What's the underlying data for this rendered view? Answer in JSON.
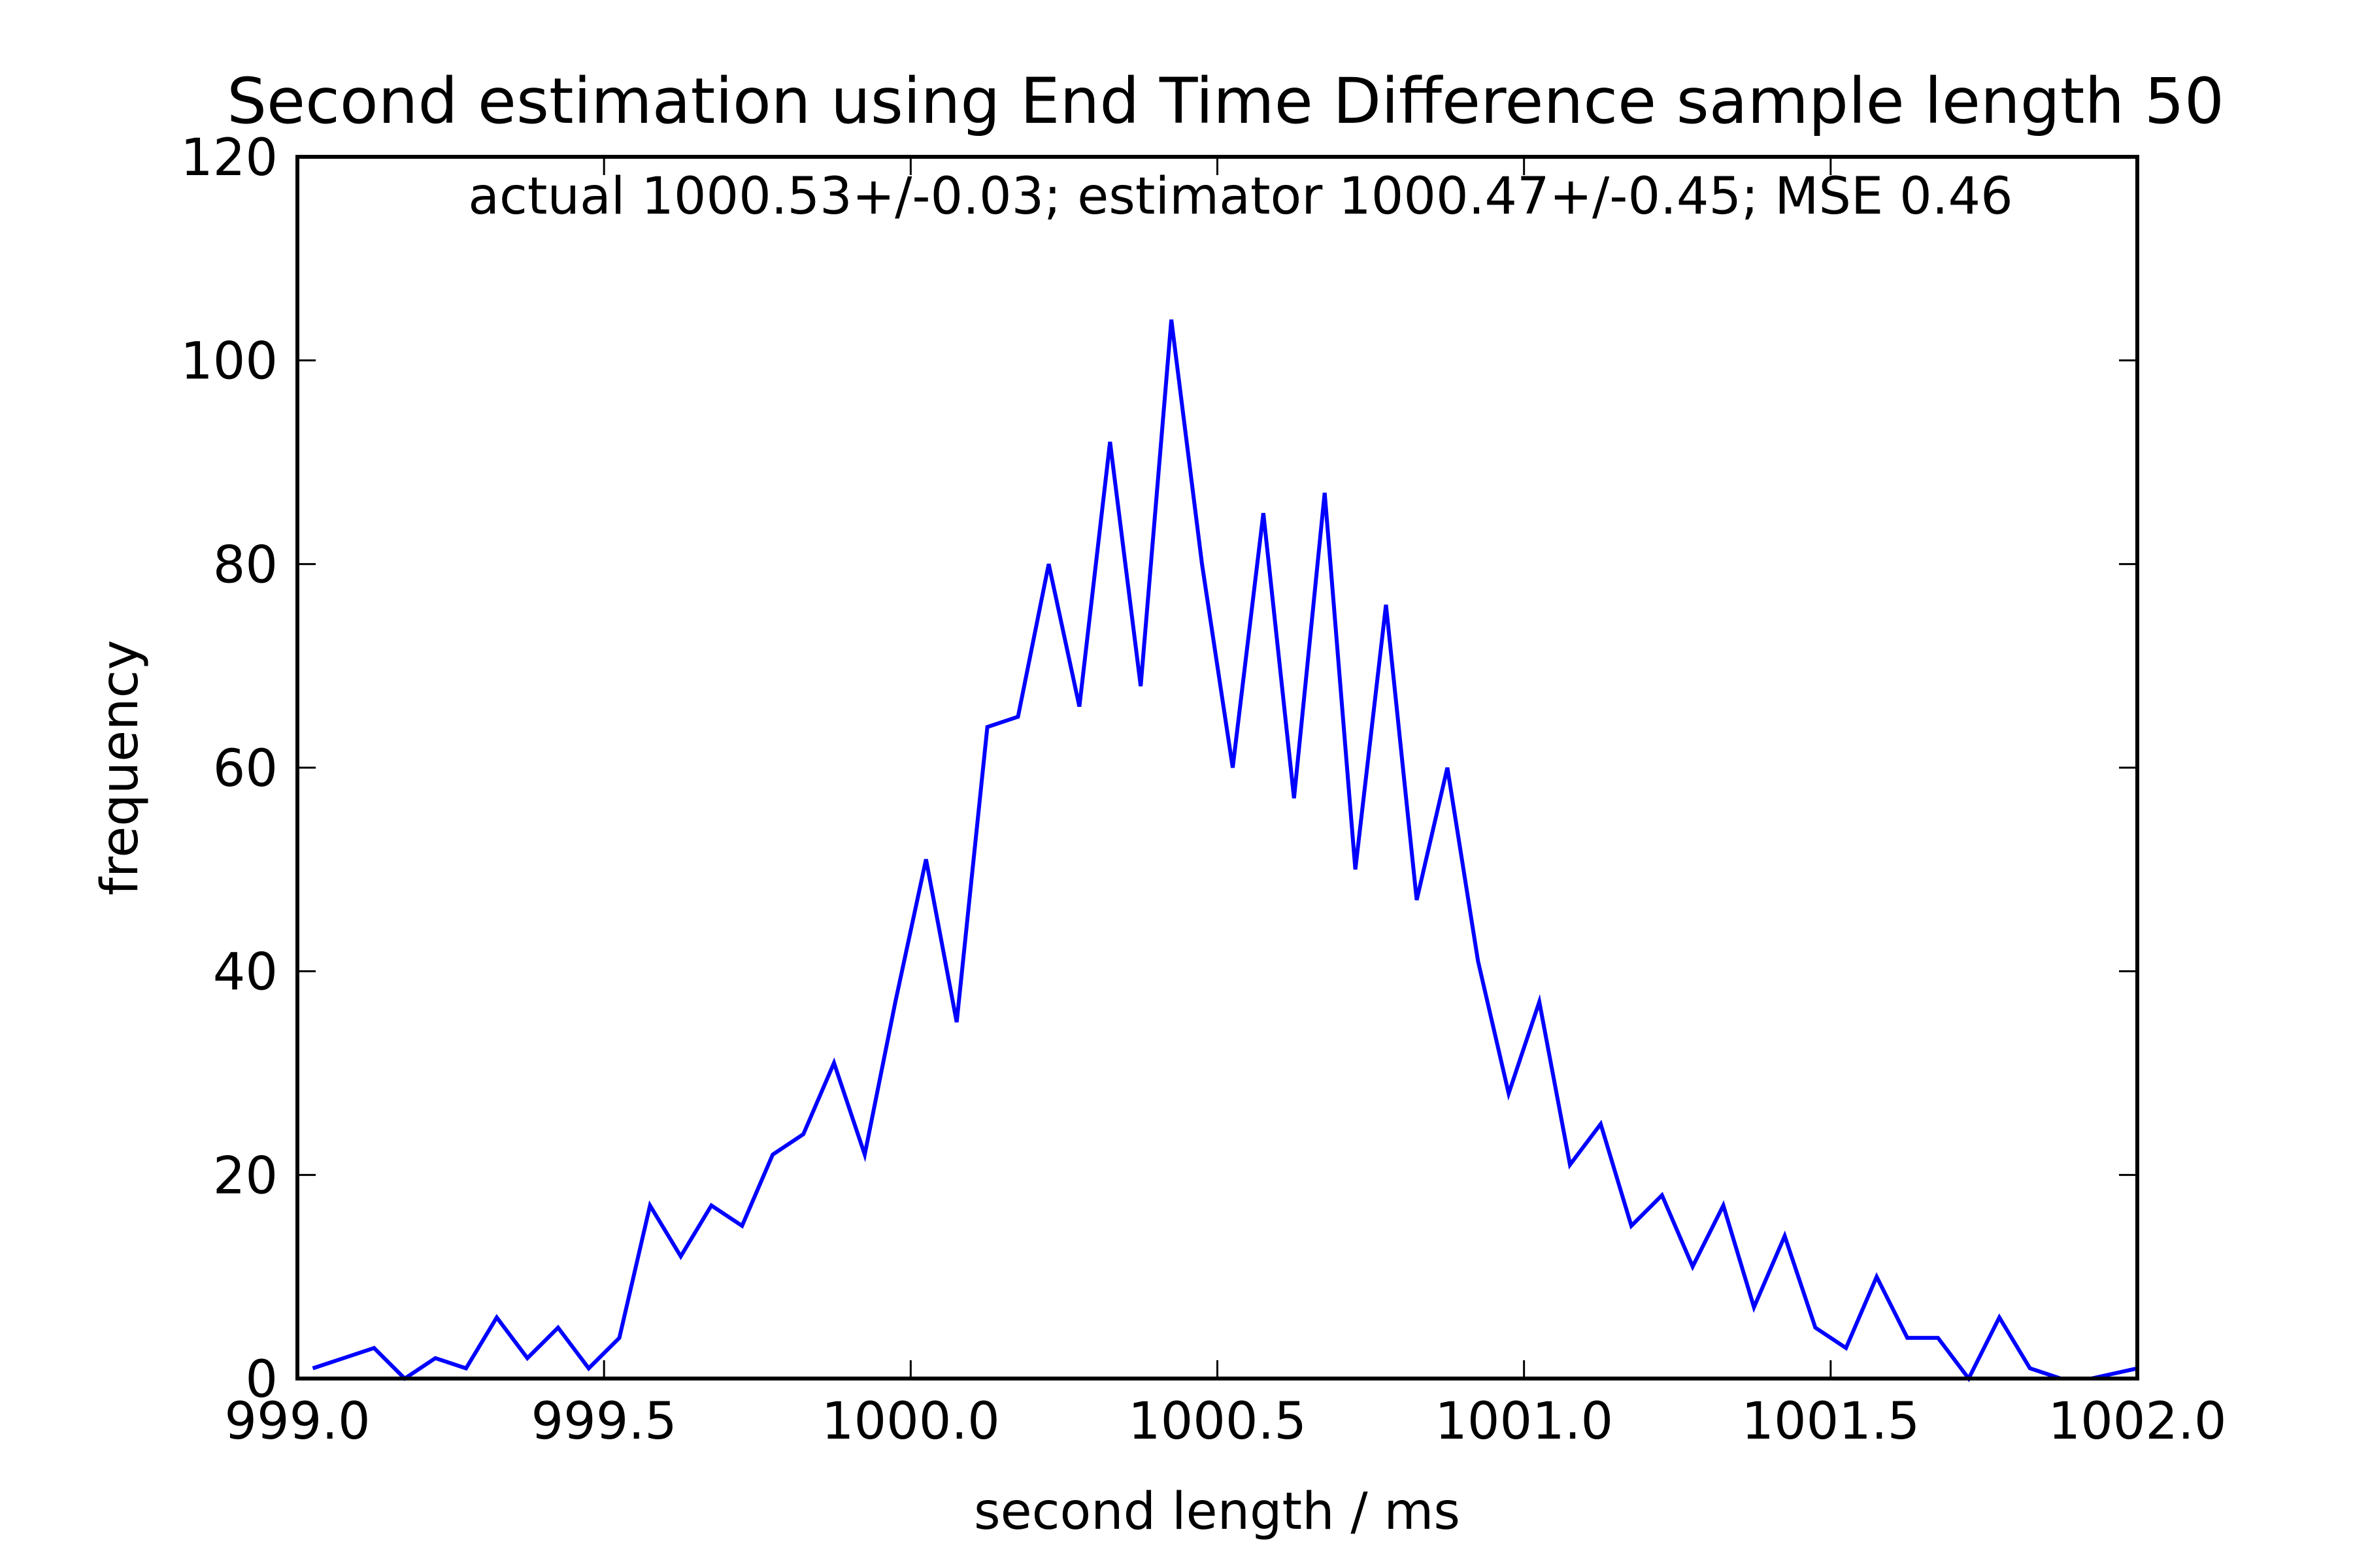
{
  "chart_data": {
    "type": "line",
    "title": "Second estimation using End Time Difference sample length 50",
    "annotation": "actual 1000.53+/-0.03;  estimator 1000.47+/-0.45;  MSE 0.46",
    "xlabel": "second length / ms",
    "ylabel": "frequency",
    "xlim": [
      999.0,
      1002.0
    ],
    "ylim": [
      0,
      120
    ],
    "xticks": [
      999.0,
      999.5,
      1000.0,
      1000.5,
      1001.0,
      1001.5,
      1002.0
    ],
    "xtick_labels": [
      "999.0",
      "999.5",
      "1000.0",
      "1000.5",
      "1001.0",
      "1001.5",
      "1002.0"
    ],
    "yticks": [
      0,
      20,
      40,
      60,
      80,
      100,
      120
    ],
    "ytick_labels": [
      "0",
      "20",
      "40",
      "60",
      "80",
      "100",
      "120"
    ],
    "grid": false,
    "line_color": "#0000ff",
    "series": [
      {
        "x": [
          999.025,
          999.125,
          999.175,
          999.225,
          999.275,
          999.325,
          999.375,
          999.425,
          999.475,
          999.525,
          999.575,
          999.625,
          999.675,
          999.725,
          999.775,
          999.825,
          999.875,
          999.925,
          999.975,
          1000.025,
          1000.075,
          1000.125,
          1000.175,
          1000.225,
          1000.275,
          1000.325,
          1000.375,
          1000.425,
          1000.475,
          1000.525,
          1000.575,
          1000.625,
          1000.675,
          1000.725,
          1000.775,
          1000.825,
          1000.875,
          1000.925,
          1000.975,
          1001.025,
          1001.075,
          1001.125,
          1001.175,
          1001.225,
          1001.275,
          1001.325,
          1001.375,
          1001.425,
          1001.475,
          1001.525,
          1001.575,
          1001.625,
          1001.675,
          1001.725,
          1001.775,
          1001.825,
          1001.875,
          1001.925,
          1002.0
        ],
        "y": [
          1,
          3,
          0,
          2,
          1,
          6,
          2,
          5,
          1,
          4,
          17,
          12,
          17,
          15,
          22,
          24,
          31,
          22,
          37,
          51,
          35,
          64,
          65,
          80,
          66,
          92,
          68,
          104,
          80,
          60,
          85,
          57,
          87,
          50,
          76,
          47,
          60,
          41,
          28,
          37,
          21,
          25,
          15,
          18,
          11,
          17,
          7,
          14,
          5,
          3,
          10,
          4,
          4,
          0,
          6,
          1,
          0,
          0,
          1
        ]
      }
    ]
  }
}
